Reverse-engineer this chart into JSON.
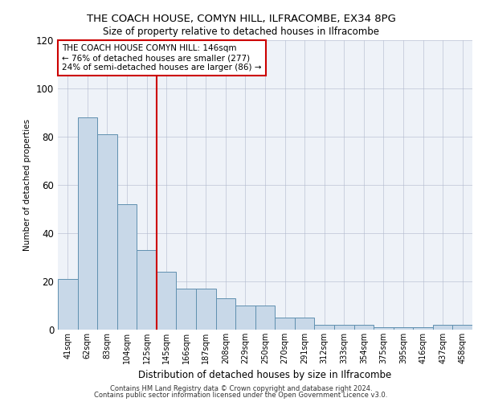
{
  "title": "THE COACH HOUSE, COMYN HILL, ILFRACOMBE, EX34 8PG",
  "subtitle": "Size of property relative to detached houses in Ilfracombe",
  "xlabel": "Distribution of detached houses by size in Ilfracombe",
  "ylabel": "Number of detached properties",
  "categories": [
    "41sqm",
    "62sqm",
    "83sqm",
    "104sqm",
    "125sqm",
    "145sqm",
    "166sqm",
    "187sqm",
    "208sqm",
    "229sqm",
    "250sqm",
    "270sqm",
    "291sqm",
    "312sqm",
    "333sqm",
    "354sqm",
    "375sqm",
    "395sqm",
    "416sqm",
    "437sqm",
    "458sqm"
  ],
  "values": [
    21,
    88,
    81,
    52,
    33,
    24,
    17,
    17,
    13,
    10,
    10,
    5,
    5,
    2,
    2,
    2,
    1,
    1,
    1,
    2,
    2
  ],
  "bar_color": "#c8d8e8",
  "bar_edge_color": "#6090b0",
  "highlight_index": 5,
  "highlight_line_color": "#cc0000",
  "annotation_text": "THE COACH HOUSE COMYN HILL: 146sqm\n← 76% of detached houses are smaller (277)\n24% of semi-detached houses are larger (86) →",
  "annotation_box_color": "#ffffff",
  "annotation_box_edge": "#cc0000",
  "ylim": [
    0,
    120
  ],
  "yticks": [
    0,
    20,
    40,
    60,
    80,
    100,
    120
  ],
  "footer1": "Contains HM Land Registry data © Crown copyright and database right 2024.",
  "footer2": "Contains public sector information licensed under the Open Government Licence v3.0.",
  "background_color": "#eef2f8"
}
